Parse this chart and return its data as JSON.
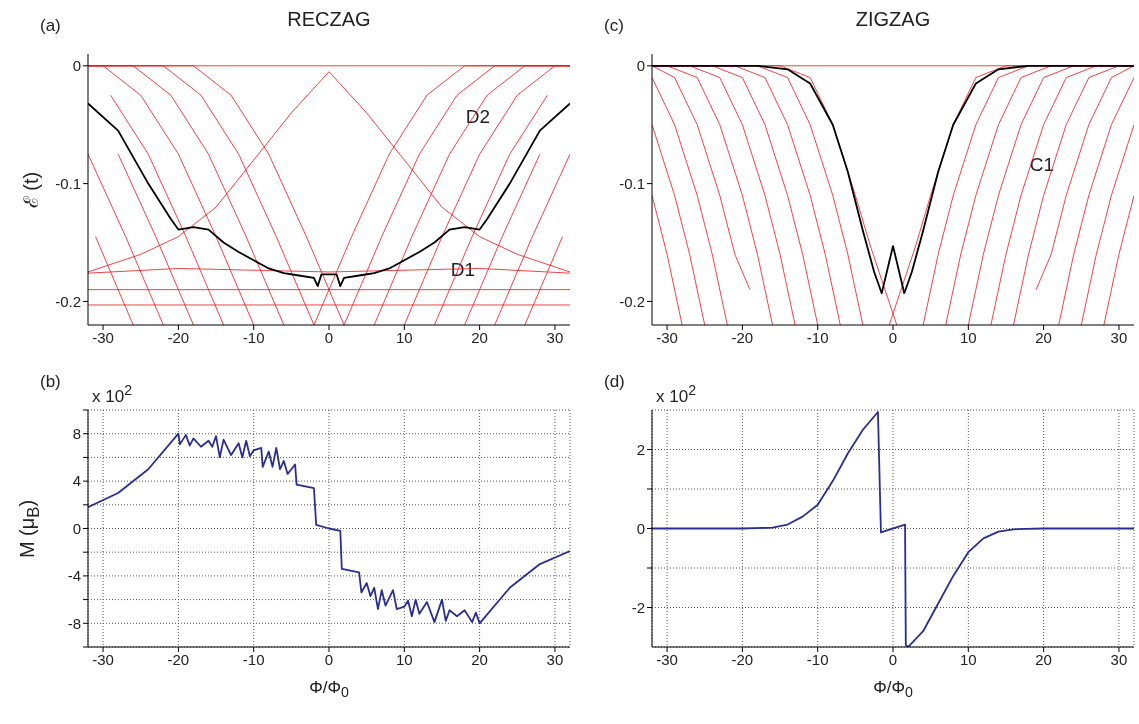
{
  "chart_data": [
    {
      "type": "line",
      "title": "RECZAG",
      "ylabel": "ℰ (t)",
      "xlim": [
        -32,
        32
      ],
      "xticks": [
        -30,
        -20,
        -10,
        0,
        10,
        20,
        30
      ],
      "ylim": [
        -0.22,
        0.01
      ],
      "yticks": [
        0,
        -0.1,
        -0.2
      ],
      "grid": false,
      "annotations": [
        "(a)",
        "D2",
        "D1"
      ],
      "series": [
        {
          "color": "#e8141b",
          "x": [
            -32,
            32
          ],
          "values": [
            0,
            0
          ]
        },
        {
          "color": "#e8141b",
          "x": [
            -32,
            32
          ],
          "values": [
            -0.203,
            -0.203
          ]
        },
        {
          "color": "#e8141b",
          "x": [
            -32,
            -20,
            0,
            20,
            32
          ],
          "values": [
            -0.19,
            -0.19,
            -0.19,
            -0.19,
            -0.19
          ]
        },
        {
          "color": "#e8141b",
          "x": [
            -32,
            -20,
            0,
            20,
            32
          ],
          "values": [
            -0.176,
            -0.172,
            -0.175,
            -0.172,
            -0.176
          ]
        },
        {
          "color": "#e8141b",
          "x": [
            0,
            -5,
            -10,
            -15,
            -20,
            -25,
            -32
          ],
          "values": [
            -0.005,
            -0.04,
            -0.08,
            -0.12,
            -0.145,
            -0.16,
            -0.175
          ]
        },
        {
          "color": "#e8141b",
          "x": [
            0,
            5,
            10,
            15,
            20,
            25,
            32
          ],
          "values": [
            -0.005,
            -0.04,
            -0.08,
            -0.12,
            -0.145,
            -0.16,
            -0.175
          ]
        },
        {
          "color": "#e8141b",
          "x": [
            -31,
            -26
          ],
          "values": [
            -0.145,
            -0.22
          ]
        },
        {
          "color": "#e8141b",
          "x": [
            -32,
            -27,
            -22
          ],
          "values": [
            -0.075,
            -0.145,
            -0.22
          ]
        },
        {
          "color": "#e8141b",
          "x": [
            -28,
            -23,
            -18
          ],
          "values": [
            -0.075,
            -0.145,
            -0.22
          ]
        },
        {
          "color": "#e8141b",
          "x": [
            -29,
            -24,
            -19,
            -14
          ],
          "values": [
            -0.025,
            -0.075,
            -0.145,
            -0.22
          ]
        },
        {
          "color": "#e8141b",
          "x": [
            -32,
            -30,
            -25,
            -20,
            -15,
            -10
          ],
          "values": [
            0,
            0,
            -0.025,
            -0.075,
            -0.145,
            -0.22
          ]
        },
        {
          "color": "#e8141b",
          "x": [
            -32,
            -26,
            -21,
            -16,
            -11,
            -6
          ],
          "values": [
            0,
            0,
            -0.025,
            -0.075,
            -0.145,
            -0.22
          ]
        },
        {
          "color": "#e8141b",
          "x": [
            -32,
            -22,
            -17,
            -12,
            -7,
            -2
          ],
          "values": [
            0,
            0,
            -0.025,
            -0.075,
            -0.145,
            -0.22
          ]
        },
        {
          "color": "#e8141b",
          "x": [
            -32,
            -18,
            -13,
            -8,
            -3,
            2
          ],
          "values": [
            0,
            0,
            -0.025,
            -0.075,
            -0.145,
            -0.22
          ]
        },
        {
          "color": "#e8141b",
          "x": [
            31,
            26
          ],
          "values": [
            -0.145,
            -0.22
          ]
        },
        {
          "color": "#e8141b",
          "x": [
            32,
            27,
            22
          ],
          "values": [
            -0.075,
            -0.145,
            -0.22
          ]
        },
        {
          "color": "#e8141b",
          "x": [
            28,
            23,
            18
          ],
          "values": [
            -0.075,
            -0.145,
            -0.22
          ]
        },
        {
          "color": "#e8141b",
          "x": [
            29,
            24,
            19,
            14
          ],
          "values": [
            -0.025,
            -0.075,
            -0.145,
            -0.22
          ]
        },
        {
          "color": "#e8141b",
          "x": [
            32,
            30,
            25,
            20,
            15,
            10
          ],
          "values": [
            0,
            0,
            -0.025,
            -0.075,
            -0.145,
            -0.22
          ]
        },
        {
          "color": "#e8141b",
          "x": [
            32,
            26,
            21,
            16,
            11,
            6
          ],
          "values": [
            0,
            0,
            -0.025,
            -0.075,
            -0.145,
            -0.22
          ]
        },
        {
          "color": "#e8141b",
          "x": [
            32,
            22,
            17,
            12,
            7,
            2
          ],
          "values": [
            0,
            0,
            -0.025,
            -0.075,
            -0.145,
            -0.22
          ]
        },
        {
          "color": "#e8141b",
          "x": [
            32,
            18,
            13,
            8,
            3,
            -2
          ],
          "values": [
            0,
            0,
            -0.025,
            -0.075,
            -0.145,
            -0.22
          ]
        },
        {
          "color": "#000000",
          "x": [
            -32,
            -28,
            -24,
            -21,
            -20,
            -18,
            -16,
            -14,
            -12,
            -10,
            -8,
            -6,
            -4,
            -2,
            -1.5,
            -1,
            0,
            1,
            1.5,
            2,
            4,
            6,
            8,
            10,
            12,
            14,
            16,
            18,
            20,
            21,
            24,
            28,
            32
          ],
          "values": [
            -0.032,
            -0.055,
            -0.1,
            -0.13,
            -0.139,
            -0.137,
            -0.139,
            -0.15,
            -0.158,
            -0.165,
            -0.172,
            -0.176,
            -0.178,
            -0.18,
            -0.187,
            -0.177,
            -0.177,
            -0.177,
            -0.187,
            -0.18,
            -0.178,
            -0.176,
            -0.172,
            -0.165,
            -0.158,
            -0.15,
            -0.139,
            -0.137,
            -0.139,
            -0.13,
            -0.1,
            -0.055,
            -0.032
          ]
        }
      ]
    },
    {
      "type": "line",
      "title": "ZIGZAG",
      "xlim": [
        -32,
        32
      ],
      "xticks": [
        -30,
        -20,
        -10,
        0,
        10,
        20,
        30
      ],
      "ylim": [
        -0.22,
        0.01
      ],
      "yticks": [
        0,
        -0.1,
        -0.2
      ],
      "grid": false,
      "annotations": [
        "(c)",
        "C1"
      ],
      "series": [
        {
          "color": "#e8141b",
          "x": [
            -32,
            32
          ],
          "values": [
            0,
            0
          ]
        },
        {
          "color": "#e8141b",
          "x": [
            -32,
            -30,
            -28
          ],
          "values": [
            -0.11,
            -0.16,
            -0.22
          ]
        },
        {
          "color": "#e8141b",
          "x": [
            -32,
            -29,
            -27,
            -25
          ],
          "values": [
            -0.05,
            -0.11,
            -0.16,
            -0.22
          ]
        },
        {
          "color": "#e8141b",
          "x": [
            -32,
            -29,
            -26,
            -24,
            -22
          ],
          "values": [
            -0.01,
            -0.05,
            -0.11,
            -0.16,
            -0.22
          ]
        },
        {
          "color": "#e8141b",
          "x": [
            -32,
            -29,
            -26,
            -23,
            -21,
            -19
          ],
          "values": [
            0,
            -0.01,
            -0.05,
            -0.11,
            -0.16,
            -0.19
          ]
        },
        {
          "color": "#e8141b",
          "x": [
            -32,
            -30,
            -26,
            -23,
            -20,
            -18,
            -16
          ],
          "values": [
            0,
            0,
            -0.01,
            -0.05,
            -0.11,
            -0.16,
            -0.22
          ]
        },
        {
          "color": "#e8141b",
          "x": [
            -32,
            -27,
            -23,
            -20,
            -17,
            -15,
            -13
          ],
          "values": [
            0,
            0,
            -0.01,
            -0.05,
            -0.11,
            -0.16,
            -0.22
          ]
        },
        {
          "color": "#e8141b",
          "x": [
            -32,
            -24,
            -20,
            -17,
            -14,
            -12,
            -10
          ],
          "values": [
            0,
            0,
            -0.01,
            -0.05,
            -0.11,
            -0.16,
            -0.22
          ]
        },
        {
          "color": "#e8141b",
          "x": [
            -32,
            -21,
            -17,
            -14,
            -11,
            -9,
            -7
          ],
          "values": [
            0,
            0,
            -0.01,
            -0.05,
            -0.11,
            -0.16,
            -0.22
          ]
        },
        {
          "color": "#e8141b",
          "x": [
            -32,
            -18,
            -14,
            -11,
            -8,
            -6,
            -4
          ],
          "values": [
            0,
            0,
            -0.01,
            -0.05,
            -0.11,
            -0.16,
            -0.22
          ]
        },
        {
          "color": "#e8141b",
          "x": [
            -32,
            -15,
            -11,
            -8,
            -5,
            -3,
            0.5
          ],
          "values": [
            0,
            0,
            -0.01,
            -0.05,
            -0.11,
            -0.153,
            -0.22
          ]
        },
        {
          "color": "#e8141b",
          "x": [
            32,
            30,
            28
          ],
          "values": [
            -0.11,
            -0.16,
            -0.22
          ]
        },
        {
          "color": "#e8141b",
          "x": [
            32,
            29,
            27,
            25
          ],
          "values": [
            -0.05,
            -0.11,
            -0.16,
            -0.22
          ]
        },
        {
          "color": "#e8141b",
          "x": [
            32,
            29,
            26,
            24,
            22
          ],
          "values": [
            -0.01,
            -0.05,
            -0.11,
            -0.16,
            -0.22
          ]
        },
        {
          "color": "#e8141b",
          "x": [
            32,
            29,
            26,
            23,
            21,
            19
          ],
          "values": [
            0,
            -0.01,
            -0.05,
            -0.11,
            -0.16,
            -0.19
          ]
        },
        {
          "color": "#e8141b",
          "x": [
            32,
            30,
            26,
            23,
            20,
            18,
            16
          ],
          "values": [
            0,
            0,
            -0.01,
            -0.05,
            -0.11,
            -0.16,
            -0.22
          ]
        },
        {
          "color": "#e8141b",
          "x": [
            32,
            27,
            23,
            20,
            17,
            15,
            13
          ],
          "values": [
            0,
            0,
            -0.01,
            -0.05,
            -0.11,
            -0.16,
            -0.22
          ]
        },
        {
          "color": "#e8141b",
          "x": [
            32,
            24,
            20,
            17,
            14,
            12,
            10
          ],
          "values": [
            0,
            0,
            -0.01,
            -0.05,
            -0.11,
            -0.16,
            -0.22
          ]
        },
        {
          "color": "#e8141b",
          "x": [
            32,
            21,
            17,
            14,
            11,
            9,
            7
          ],
          "values": [
            0,
            0,
            -0.01,
            -0.05,
            -0.11,
            -0.16,
            -0.22
          ]
        },
        {
          "color": "#e8141b",
          "x": [
            32,
            18,
            14,
            11,
            8,
            6,
            4
          ],
          "values": [
            0,
            0,
            -0.01,
            -0.05,
            -0.11,
            -0.16,
            -0.22
          ]
        },
        {
          "color": "#e8141b",
          "x": [
            32,
            15,
            11,
            8,
            5,
            3,
            -0.5
          ],
          "values": [
            0,
            0,
            -0.01,
            -0.05,
            -0.11,
            -0.153,
            -0.22
          ]
        },
        {
          "color": "#000000",
          "x": [
            -32,
            -18,
            -14,
            -11,
            -8,
            -6,
            -4,
            -2.5,
            -1.5,
            0,
            1.5,
            2.5,
            4,
            6,
            8,
            11,
            14,
            18,
            32
          ],
          "values": [
            0,
            0,
            -0.003,
            -0.015,
            -0.05,
            -0.09,
            -0.14,
            -0.175,
            -0.193,
            -0.153,
            -0.193,
            -0.175,
            -0.14,
            -0.09,
            -0.05,
            -0.015,
            -0.003,
            0,
            0
          ]
        }
      ]
    },
    {
      "type": "line",
      "xlabel": "Φ/Φ$_{0}$",
      "ylabel": "M (μ$_{B}$)",
      "xlim": [
        -32,
        32
      ],
      "xticks": [
        -30,
        -20,
        -10,
        0,
        10,
        20,
        30
      ],
      "ylim": [
        -10,
        10
      ],
      "yticks": [
        {
          "value": -10,
          "label": null
        },
        -8,
        {
          "value": -6,
          "label": null
        },
        -4,
        {
          "value": -2,
          "label": null
        },
        0,
        {
          "value": 2,
          "label": null
        },
        4,
        {
          "value": 6,
          "label": null
        },
        8,
        {
          "value": 10,
          "label": null
        }
      ],
      "grid": true,
      "annotations": [
        "(b)",
        "x 10$^{2}$"
      ],
      "series": [
        {
          "color": "#2a2e8f",
          "x": [
            -32,
            -28,
            -24,
            -20,
            -19.8,
            -19,
            -18.5,
            -18,
            -17,
            -16,
            -15.5,
            -15,
            -14.5,
            -14,
            -13,
            -12,
            -11.5,
            -11,
            -10.5,
            -10,
            -9,
            -8.8,
            -8,
            -7.5,
            -7,
            -6.5,
            -6,
            -5.5,
            -4.5,
            -4.3,
            -2,
            -1.7,
            0,
            1.5,
            1.7,
            4,
            4.3,
            5,
            5.5,
            6,
            6.5,
            7,
            7.5,
            8.5,
            9,
            10,
            10.5,
            11,
            11.5,
            12,
            13,
            14,
            15,
            15.5,
            16,
            17,
            18,
            19,
            19.5,
            20,
            24,
            28,
            32
          ],
          "values": [
            1.8,
            3,
            5,
            8,
            7.1,
            7.9,
            7,
            7.6,
            6.9,
            7.4,
            6.9,
            7.8,
            6,
            7.5,
            6.2,
            7.2,
            6,
            7.4,
            6.1,
            6.6,
            6.8,
            5.2,
            6.5,
            5.2,
            6.8,
            5,
            5.7,
            4.6,
            5.4,
            3.7,
            3.4,
            0.3,
            0,
            -0.2,
            -3.4,
            -3.7,
            -5.4,
            -4.6,
            -5.7,
            -5,
            -6.8,
            -5.2,
            -6.5,
            -5.2,
            -6.8,
            -6.6,
            -6.1,
            -7.4,
            -6,
            -7.2,
            -6.2,
            -7.9,
            -6,
            -7.8,
            -6.9,
            -7.4,
            -6.9,
            -7.9,
            -7.1,
            -8,
            -5,
            -3,
            -1.9
          ]
        }
      ]
    },
    {
      "type": "line",
      "xlabel": "Φ/Φ$_{0}$",
      "xlim": [
        -32,
        32
      ],
      "xticks": [
        -30,
        -20,
        -10,
        0,
        10,
        20,
        30
      ],
      "ylim": [
        -3,
        3
      ],
      "yticks": [
        -2,
        {
          "value": -1,
          "label": null
        },
        0,
        {
          "value": 1,
          "label": null
        },
        2
      ],
      "grid": true,
      "annotations": [
        "(d)",
        "x 10$^{2}$"
      ],
      "series": [
        {
          "color": "#2a2e8f",
          "x": [
            -32,
            -20,
            -16,
            -14,
            -12,
            -10,
            -8,
            -6,
            -4,
            -2,
            -1.6,
            1.6,
            1.7,
            2,
            4,
            6,
            8,
            10,
            12,
            14,
            16,
            20,
            32
          ],
          "values": [
            0,
            0,
            0.02,
            0.1,
            0.3,
            0.6,
            1.2,
            1.9,
            2.5,
            2.95,
            -0.1,
            0.1,
            -2.95,
            -3,
            -2.6,
            -1.9,
            -1.2,
            -0.6,
            -0.25,
            -0.08,
            -0.02,
            0,
            0
          ]
        }
      ]
    }
  ]
}
